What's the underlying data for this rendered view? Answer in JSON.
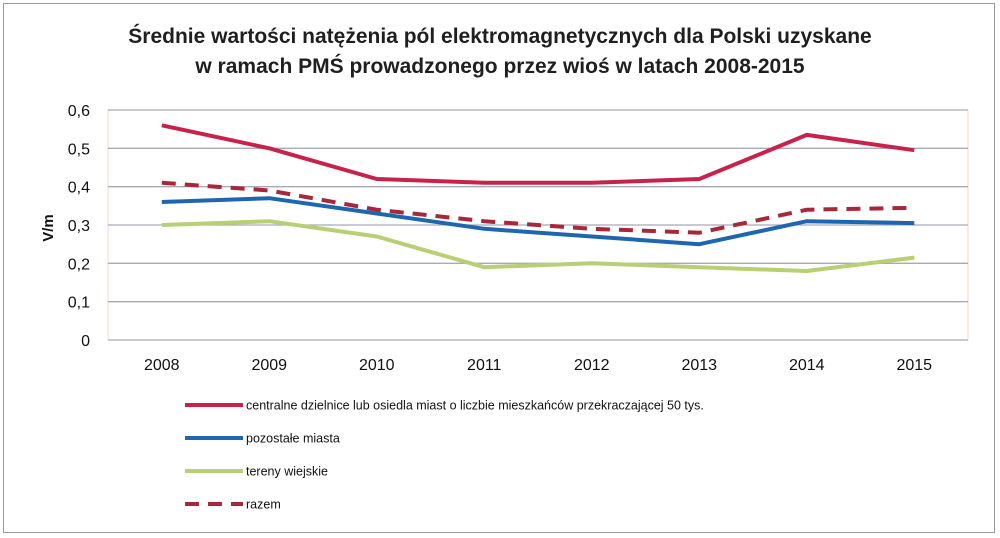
{
  "chart_data": {
    "type": "line",
    "title_line1": "Średnie wartości natężenia pól elektromagnetycznych dla Polski uzyskane",
    "title_line2": "w ramach PMŚ prowadzonego przez wioś w latach 2008-2015",
    "ylabel": "V/m",
    "xlabel": "",
    "x": [
      "2008",
      "2009",
      "2010",
      "2011",
      "2012",
      "2013",
      "2014",
      "2015"
    ],
    "ylim": [
      0,
      0.6
    ],
    "yticks": [
      0,
      0.1,
      0.2,
      0.3,
      0.4,
      0.5,
      0.6
    ],
    "ytick_labels": [
      "0",
      "0,1",
      "0,2",
      "0,3",
      "0,4",
      "0,5",
      "0,6"
    ],
    "grid": true,
    "legend_position": "bottom",
    "series": [
      {
        "name": "centralne dzielnice lub osiedla miast o liczbie mieszkańców przekraczającej 50 tys.",
        "values": [
          0.56,
          0.5,
          0.42,
          0.41,
          0.41,
          0.42,
          0.535,
          0.495
        ],
        "color": "#C8224C",
        "style": "solid"
      },
      {
        "name": "pozostałe miasta",
        "values": [
          0.36,
          0.37,
          0.33,
          0.29,
          0.27,
          0.25,
          0.31,
          0.305
        ],
        "color": "#1F66B0",
        "style": "solid"
      },
      {
        "name": "tereny wiejskie",
        "values": [
          0.3,
          0.31,
          0.27,
          0.19,
          0.2,
          0.19,
          0.18,
          0.215
        ],
        "color": "#B8CF73",
        "style": "solid"
      },
      {
        "name": "razem",
        "values": [
          0.41,
          0.39,
          0.34,
          0.31,
          0.29,
          0.28,
          0.34,
          0.345
        ],
        "color": "#A8283A",
        "style": "dashed"
      }
    ]
  }
}
